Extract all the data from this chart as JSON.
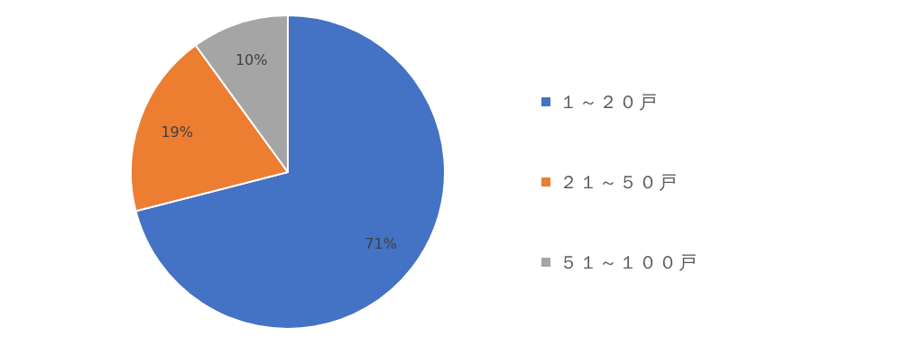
{
  "chart_data": {
    "type": "pie",
    "categories": [
      "１～２０戸",
      "２１～５０戸",
      "５１～１００戸"
    ],
    "values": [
      71,
      19,
      10
    ],
    "colors": [
      "#4472c4",
      "#ed7d31",
      "#a5a5a5"
    ],
    "value_labels": [
      "71%",
      "19%",
      "10%"
    ],
    "legend": "right"
  }
}
